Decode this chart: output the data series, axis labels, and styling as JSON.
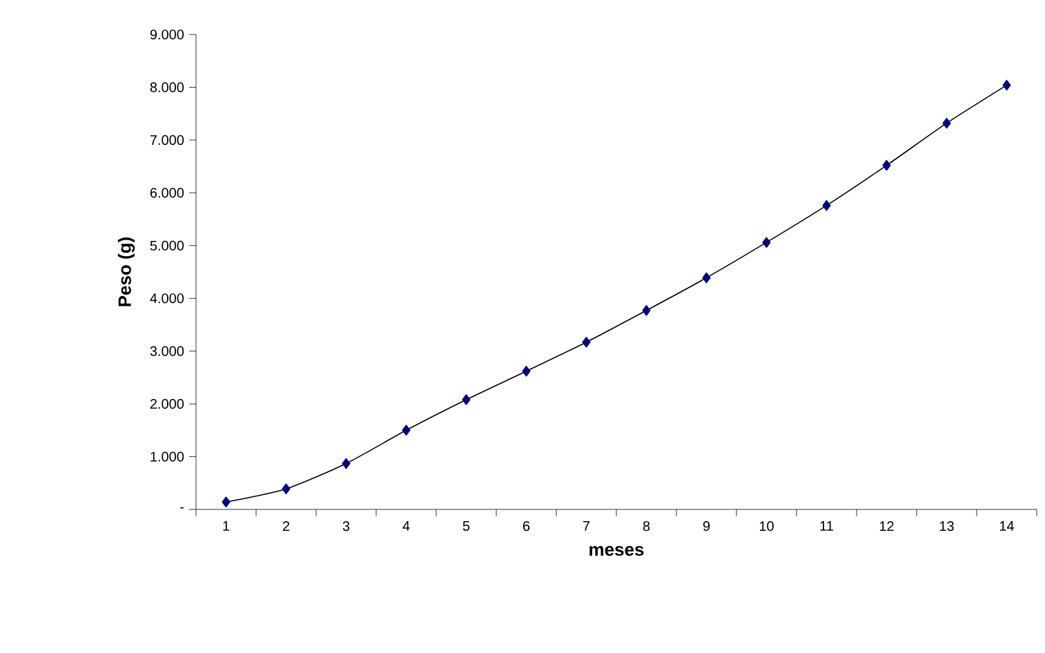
{
  "chart_data": {
    "type": "line",
    "xlabel": "meses",
    "ylabel": "Peso (g)",
    "categories": [
      "1",
      "2",
      "3",
      "4",
      "5",
      "6",
      "7",
      "8",
      "9",
      "10",
      "11",
      "12",
      "13",
      "14"
    ],
    "series": [
      {
        "color": "#000080",
        "values": [
          140,
          390,
          870,
          1500,
          2080,
          2620,
          3170,
          3770,
          4390,
          5060,
          5760,
          6520,
          7320,
          8040
        ]
      }
    ],
    "ylim": [
      0,
      9000
    ],
    "yticks": [
      {
        "value": 0,
        "label": "-"
      },
      {
        "value": 1000,
        "label": "1.000"
      },
      {
        "value": 2000,
        "label": "2.000"
      },
      {
        "value": 3000,
        "label": "3.000"
      },
      {
        "value": 4000,
        "label": "4.000"
      },
      {
        "value": 5000,
        "label": "5.000"
      },
      {
        "value": 6000,
        "label": "6.000"
      },
      {
        "value": 7000,
        "label": "7.000"
      },
      {
        "value": 8000,
        "label": "8.000"
      },
      {
        "value": 9000,
        "label": "9.000"
      }
    ],
    "marker": "diamond"
  }
}
